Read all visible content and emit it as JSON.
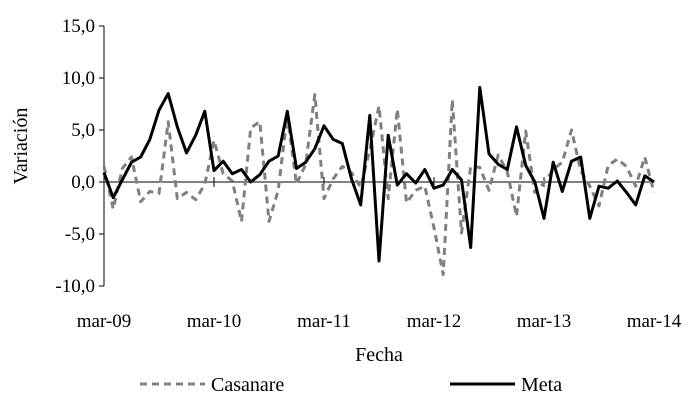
{
  "chart_data": {
    "type": "line",
    "xlabel": "Fecha",
    "ylabel": "Variación",
    "ylim": [
      -10,
      15
    ],
    "yticks": [
      15,
      10,
      5,
      0,
      -5,
      -10
    ],
    "ytick_labels": [
      "15,0",
      "10,0",
      "5,0",
      "0,0",
      "-5,0",
      "-10,0"
    ],
    "x_range": [
      "2009-03",
      "2014-03"
    ],
    "xtick_labels": [
      "mar-09",
      "mar-10",
      "mar-11",
      "mar-12",
      "mar-13",
      "mar-14"
    ],
    "grid": false,
    "legend_position": "bottom",
    "series": [
      {
        "name": "Casanare",
        "color": "#808080",
        "style": "dashed",
        "values": [
          1.5,
          -2.6,
          1.3,
          2.4,
          -1.9,
          -0.9,
          -1.1,
          5.8,
          -1.6,
          -1.0,
          -1.7,
          -0.2,
          4.0,
          0.8,
          0.1,
          -3.8,
          5.2,
          5.8,
          -3.8,
          -0.8,
          6.4,
          -0.2,
          1.7,
          8.4,
          -1.6,
          0.3,
          1.5,
          0.9,
          -0.5,
          3.1,
          7.3,
          -1.6,
          7.0,
          -2.0,
          -0.8,
          -0.4,
          -4.4,
          -8.9,
          7.9,
          -4.9,
          1.5,
          1.4,
          -0.8,
          2.6,
          1.0,
          -3.3,
          4.9,
          -1.0,
          -0.1,
          1.2,
          1.9,
          5.0,
          1.1,
          -0.4,
          -2.3,
          1.6,
          2.2,
          1.5,
          -0.4,
          2.4,
          -1.0
        ]
      },
      {
        "name": "Meta",
        "color": "#000000",
        "style": "solid",
        "values": [
          0.9,
          -1.5,
          0.2,
          1.9,
          2.4,
          4.1,
          6.9,
          8.5,
          5.3,
          2.8,
          4.5,
          6.8,
          1.1,
          2.0,
          0.8,
          1.2,
          0.0,
          0.7,
          2.0,
          2.5,
          6.8,
          1.3,
          1.9,
          3.2,
          5.4,
          4.1,
          3.7,
          0.3,
          -2.2,
          6.4,
          -7.6,
          4.5,
          -0.3,
          0.8,
          -0.1,
          1.2,
          -0.6,
          -0.3,
          1.2,
          0.2,
          -6.3,
          9.1,
          2.7,
          1.7,
          1.2,
          5.3,
          1.6,
          0.0,
          -3.5,
          1.9,
          -0.9,
          2.0,
          2.4,
          -3.5,
          -0.4,
          -0.6,
          0.1,
          -1.0,
          -2.2,
          0.6,
          0.0
        ]
      }
    ]
  }
}
